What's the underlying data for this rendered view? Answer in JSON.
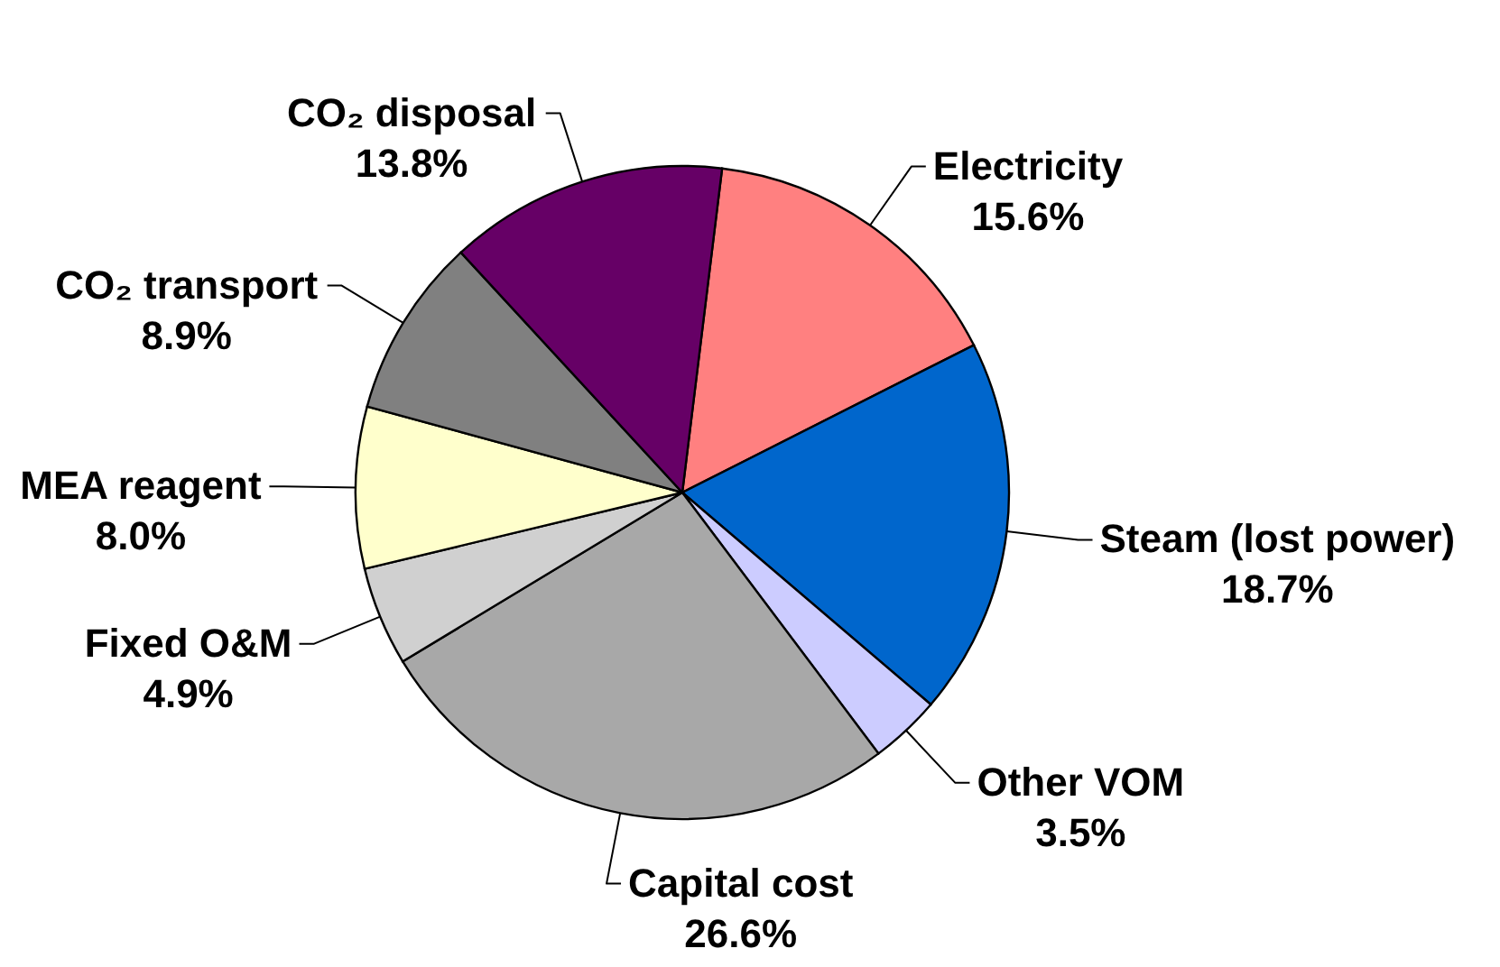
{
  "chart_data": {
    "type": "pie",
    "categories": [
      "Electricity",
      "Steam (lost power)",
      "Other VOM",
      "Capital cost",
      "Fixed O&M",
      "MEA reagent",
      "CO₂ transport",
      "CO₂ disposal"
    ],
    "values": [
      15.6,
      18.7,
      3.5,
      26.6,
      4.9,
      8.0,
      8.9,
      13.8
    ],
    "value_labels": [
      "15.6%",
      "18.7%",
      "3.5%",
      "26.6%",
      "4.9%",
      "8.0%",
      "8.9%",
      "13.8%"
    ],
    "colors": [
      "#ff8080",
      "#0066cc",
      "#ccccff",
      "#a8a8a8",
      "#d0d0d0",
      "#ffffcc",
      "#808080",
      "#660066"
    ]
  }
}
